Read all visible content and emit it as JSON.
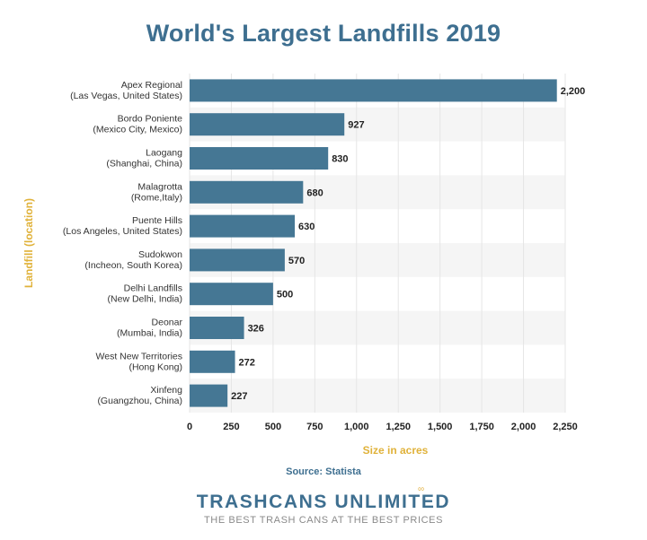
{
  "source": "Source: Statista",
  "brand": {
    "name": "TRASHCANS UNLIMITED",
    "tagline": "THE BEST TRASH CANS AT THE BEST PRICES",
    "logo_icon": "infinity-icon"
  },
  "colors": {
    "bar": "#457794",
    "title": "#3e6f90",
    "axis_label": "#e0b23a",
    "band": "#f5f5f5"
  },
  "chart_data": {
    "type": "bar",
    "orientation": "horizontal",
    "title": "World's Largest Landfills 2019",
    "xlabel": "Size in acres",
    "ylabel": "Landfill (location)",
    "xlim": [
      0,
      2250
    ],
    "xticks": [
      0,
      250,
      500,
      750,
      1000,
      1250,
      1500,
      1750,
      2000,
      2250
    ],
    "xtick_labels": [
      "0",
      "250",
      "500",
      "750",
      "1,000",
      "1,250",
      "1,500",
      "1,750",
      "2,000",
      "2,250"
    ],
    "grid": true,
    "categories": [
      {
        "name": "Apex Regional",
        "location": "(Las Vegas, United States)"
      },
      {
        "name": "Bordo Poniente",
        "location": "(Mexico City, Mexico)"
      },
      {
        "name": "Laogang",
        "location": "(Shanghai, China)"
      },
      {
        "name": "Malagrotta",
        "location": "(Rome,Italy)"
      },
      {
        "name": "Puente Hills",
        "location": "(Los Angeles, United States)"
      },
      {
        "name": "Sudokwon",
        "location": "(Incheon, South Korea)"
      },
      {
        "name": "Delhi Landfills",
        "location": "(New Delhi, India)"
      },
      {
        "name": "Deonar",
        "location": "(Mumbai, India)"
      },
      {
        "name": "West New Territories",
        "location": "(Hong Kong)"
      },
      {
        "name": "Xinfeng",
        "location": "(Guangzhou, China)"
      }
    ],
    "values": [
      2200,
      927,
      830,
      680,
      630,
      570,
      500,
      326,
      272,
      227
    ],
    "value_labels": [
      "2,200",
      "927",
      "830",
      "680",
      "630",
      "570",
      "500",
      "326",
      "272",
      "227"
    ]
  }
}
